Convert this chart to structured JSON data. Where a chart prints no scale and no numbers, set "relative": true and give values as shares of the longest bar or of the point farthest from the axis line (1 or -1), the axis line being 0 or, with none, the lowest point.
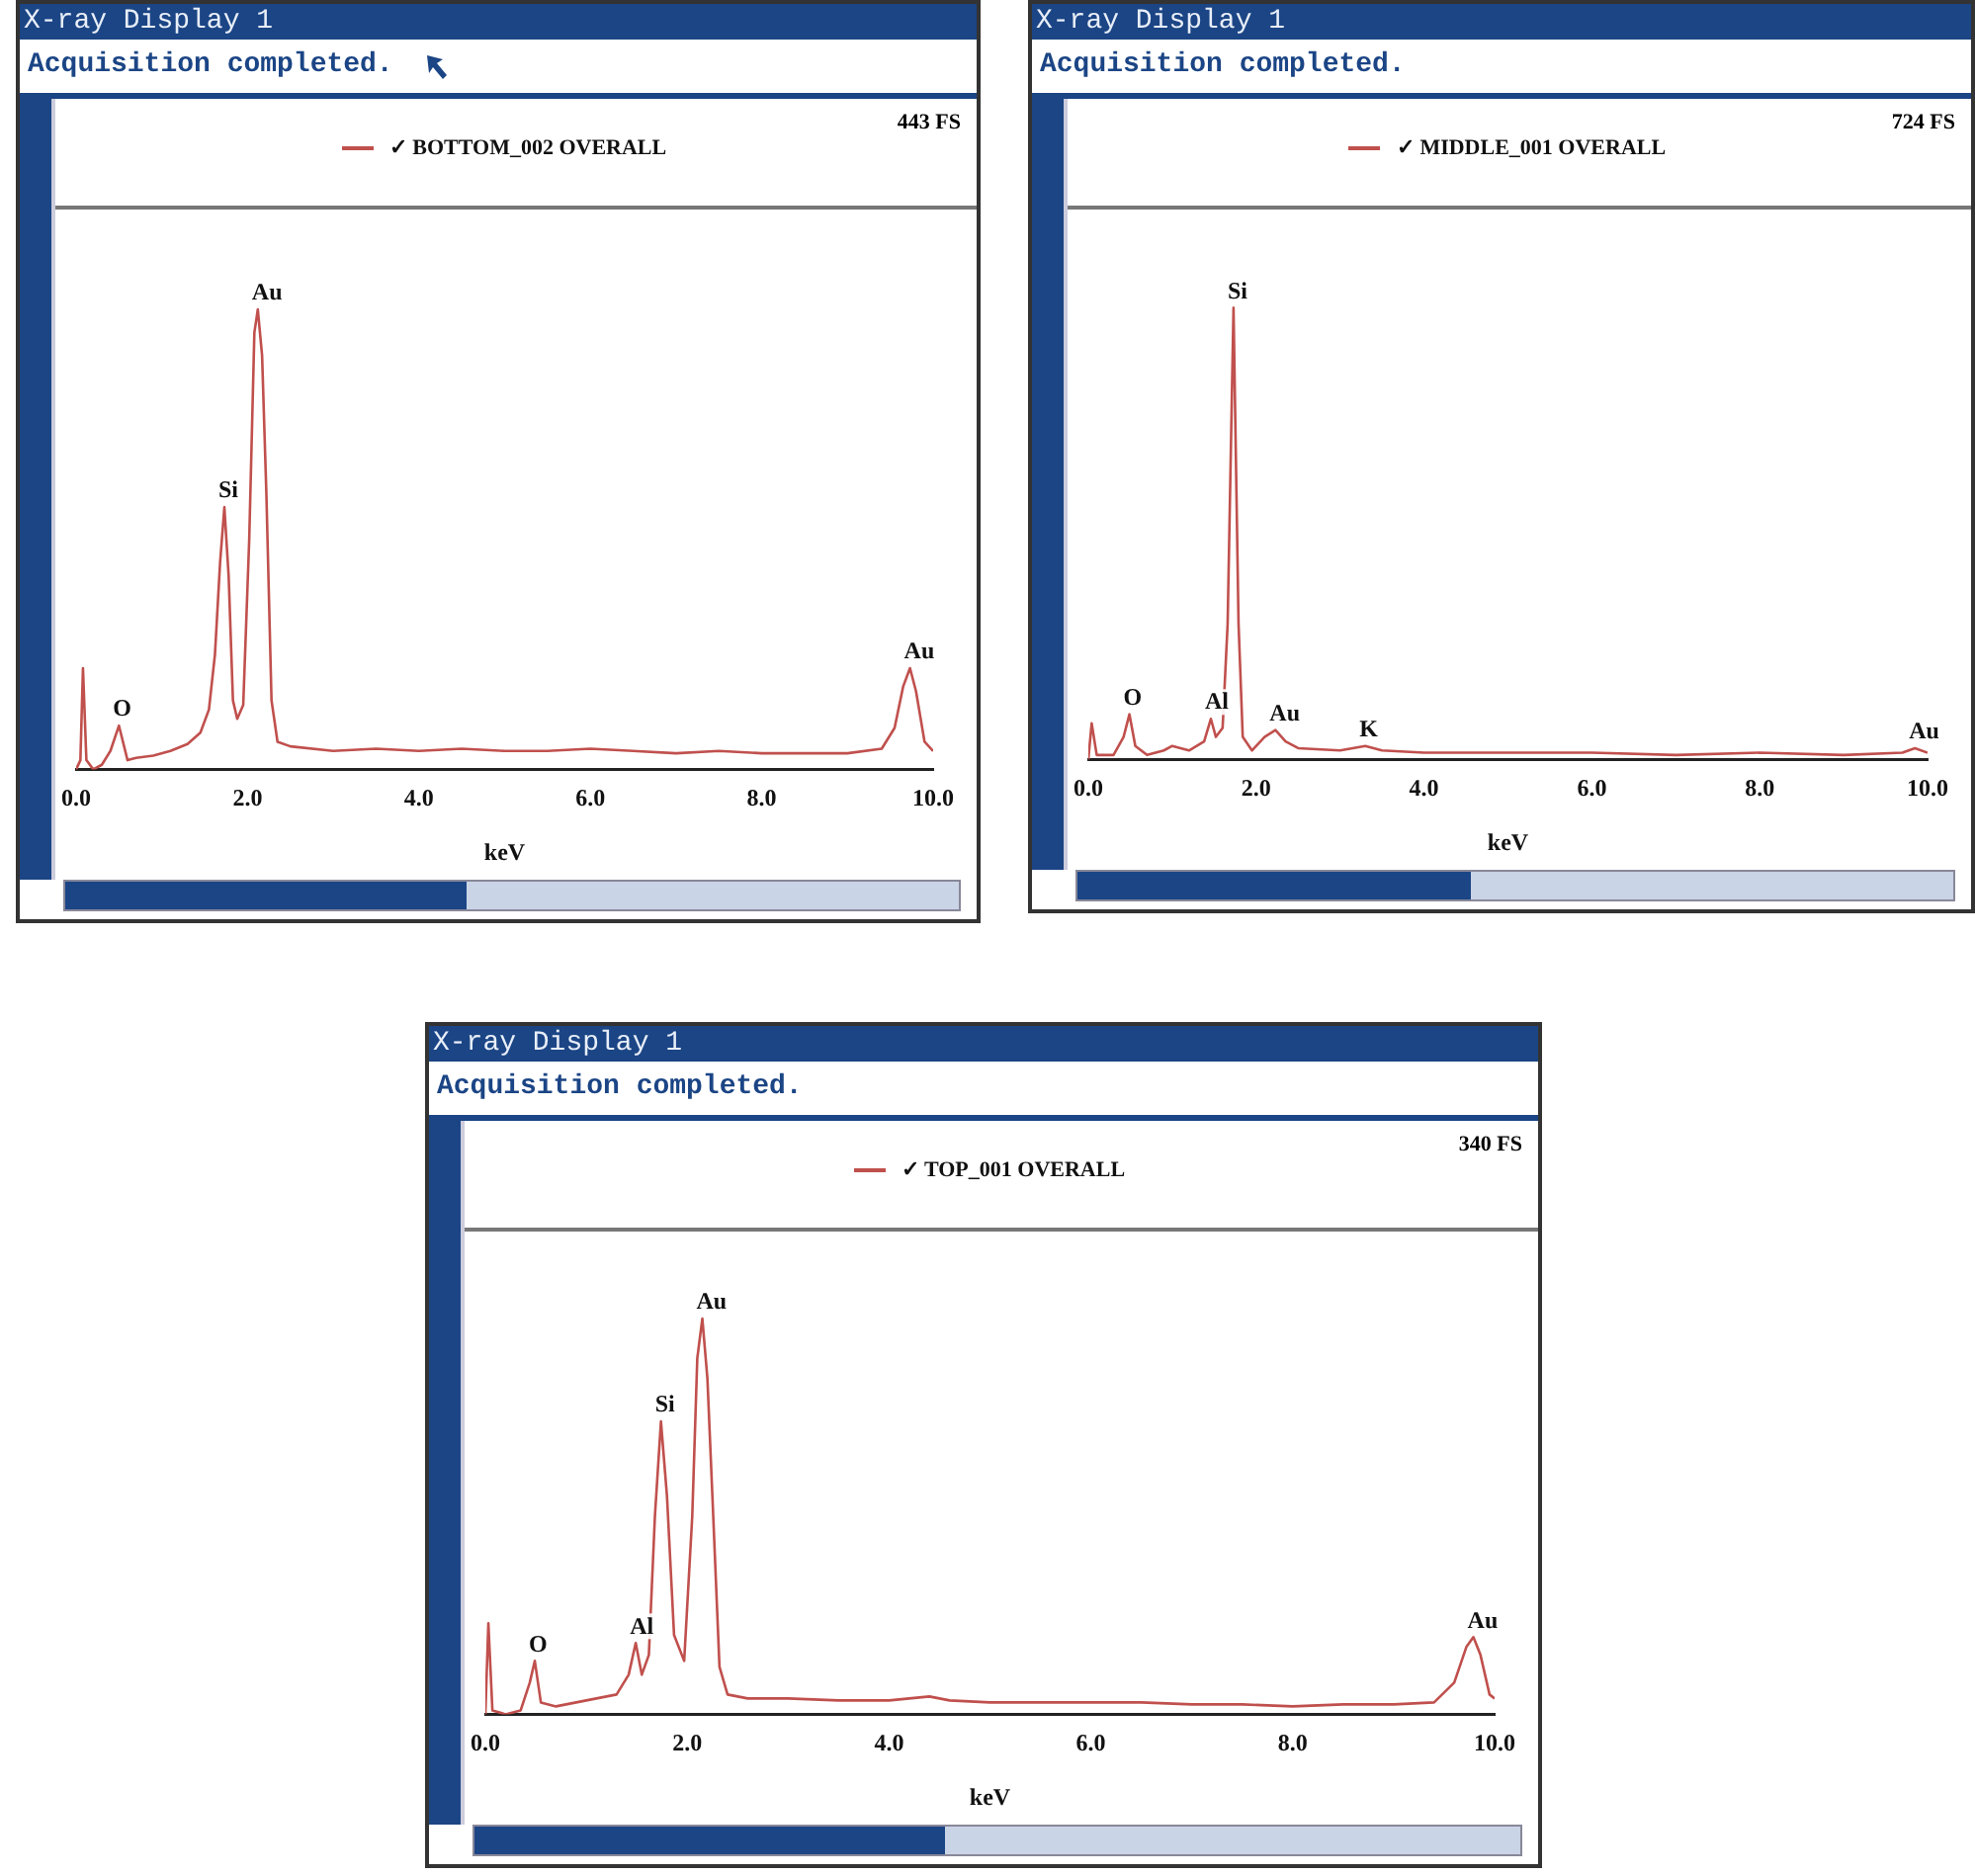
{
  "chart_data": [
    {
      "type": "line",
      "title": "X-ray Display 1",
      "subtitle": "Acquisition completed.",
      "xlabel": "keV",
      "relative": true,
      "legend": "top",
      "xlim": [
        0,
        10.0
      ],
      "xticks": [
        {
          "value": 0,
          "label": "0.0"
        },
        {
          "value": 2,
          "label": "2.0"
        },
        {
          "value": 4,
          "label": "4.0"
        },
        {
          "value": 6,
          "label": "6.0"
        },
        {
          "value": 8,
          "label": "8.0"
        },
        {
          "value": 10,
          "label": "10.0"
        }
      ],
      "x": [
        0,
        0.05,
        0.08,
        0.12,
        0.2,
        0.3,
        0.4,
        0.5,
        0.6,
        0.7,
        0.9,
        1.1,
        1.3,
        1.45,
        1.55,
        1.62,
        1.68,
        1.73,
        1.78,
        1.83,
        1.88,
        1.95,
        2.02,
        2.08,
        2.12,
        2.17,
        2.22,
        2.28,
        2.35,
        2.5,
        3.0,
        3.5,
        4.0,
        4.5,
        5.0,
        5.5,
        6.0,
        6.5,
        7.0,
        7.5,
        8.0,
        8.5,
        9.0,
        9.4,
        9.55,
        9.65,
        9.73,
        9.8,
        9.9,
        10.0
      ],
      "series": [
        {
          "name": "✓ BOTTOM_002 OVERALL",
          "color": "#c0504d",
          "values": [
            0,
            0.02,
            0.22,
            0.02,
            0,
            0.01,
            0.04,
            0.095,
            0.02,
            0.025,
            0.03,
            0.04,
            0.055,
            0.08,
            0.13,
            0.25,
            0.45,
            0.57,
            0.42,
            0.15,
            0.11,
            0.14,
            0.5,
            0.95,
            1,
            0.9,
            0.6,
            0.15,
            0.06,
            0.05,
            0.04,
            0.045,
            0.04,
            0.045,
            0.04,
            0.04,
            0.045,
            0.04,
            0.035,
            0.04,
            0.035,
            0.035,
            0.035,
            0.045,
            0.09,
            0.18,
            0.22,
            0.17,
            0.06,
            0.04
          ]
        }
      ],
      "annotations": [
        "443 FS",
        {
          "text": "O",
          "x": 0.5,
          "y": 0.095
        },
        {
          "text": "Si",
          "x": 1.73,
          "y": 0.57
        },
        {
          "text": "Au",
          "x": 2.12,
          "y": 1
        },
        {
          "text": "Au",
          "x": 9.73,
          "y": 0.22
        }
      ]
    },
    {
      "type": "line",
      "title": "X-ray Display 1",
      "subtitle": "Acquisition completed.",
      "xlabel": "keV",
      "relative": true,
      "legend": "top",
      "xlim": [
        0,
        10.0
      ],
      "xticks": [
        {
          "value": 0,
          "label": "0.0"
        },
        {
          "value": 2,
          "label": "2.0"
        },
        {
          "value": 4,
          "label": "4.0"
        },
        {
          "value": 6,
          "label": "6.0"
        },
        {
          "value": 8,
          "label": "8.0"
        },
        {
          "value": 10,
          "label": "10.0"
        }
      ],
      "x": [
        0,
        0.04,
        0.1,
        0.3,
        0.42,
        0.49,
        0.56,
        0.7,
        0.9,
        1.0,
        1.2,
        1.38,
        1.46,
        1.52,
        1.6,
        1.66,
        1.73,
        1.79,
        1.84,
        1.95,
        2.1,
        2.23,
        2.35,
        2.5,
        3.0,
        3.3,
        3.5,
        4.0,
        5.0,
        6.0,
        7.0,
        8.0,
        9.0,
        9.7,
        9.85,
        10.0
      ],
      "series": [
        {
          "name": "✓ MIDDLE_001 OVERALL",
          "color": "#c0504d",
          "values": [
            0,
            0.08,
            0.01,
            0.01,
            0.05,
            0.1,
            0.03,
            0.01,
            0.02,
            0.03,
            0.02,
            0.04,
            0.09,
            0.05,
            0.07,
            0.3,
            1,
            0.3,
            0.05,
            0.02,
            0.05,
            0.065,
            0.04,
            0.025,
            0.02,
            0.03,
            0.02,
            0.015,
            0.015,
            0.015,
            0.01,
            0.015,
            0.01,
            0.015,
            0.025,
            0.015
          ]
        }
      ],
      "annotations": [
        "724 FS",
        {
          "text": "O",
          "x": 0.49,
          "y": 0.1
        },
        {
          "text": "Al",
          "x": 1.46,
          "y": 0.09
        },
        {
          "text": "Si",
          "x": 1.73,
          "y": 1
        },
        {
          "text": "Au",
          "x": 2.23,
          "y": 0.065
        },
        {
          "text": "K",
          "x": 3.3,
          "y": 0.03
        },
        {
          "text": "Au",
          "x": 9.85,
          "y": 0.025
        }
      ]
    },
    {
      "type": "line",
      "title": "X-ray Display 1",
      "subtitle": "Acquisition completed.",
      "xlabel": "keV",
      "relative": true,
      "legend": "top",
      "xlim": [
        0,
        10.0
      ],
      "xticks": [
        {
          "value": 0,
          "label": "0.0"
        },
        {
          "value": 2,
          "label": "2.0"
        },
        {
          "value": 4,
          "label": "4.0"
        },
        {
          "value": 6,
          "label": "6.0"
        },
        {
          "value": 8,
          "label": "8.0"
        },
        {
          "value": 10,
          "label": "10.0"
        }
      ],
      "x": [
        0,
        0.03,
        0.07,
        0.2,
        0.35,
        0.44,
        0.49,
        0.55,
        0.7,
        0.9,
        1.1,
        1.3,
        1.42,
        1.49,
        1.55,
        1.62,
        1.68,
        1.74,
        1.8,
        1.87,
        1.97,
        2.05,
        2.1,
        2.15,
        2.2,
        2.25,
        2.32,
        2.4,
        2.6,
        3.0,
        3.5,
        4.0,
        4.4,
        4.6,
        5.0,
        5.5,
        6.0,
        6.5,
        7.0,
        7.5,
        8.0,
        8.5,
        9.0,
        9.4,
        9.6,
        9.72,
        9.79,
        9.86,
        9.95,
        10.0
      ],
      "series": [
        {
          "name": "✓ TOP_001 OVERALL",
          "color": "#c0504d",
          "values": [
            0,
            0.23,
            0.01,
            0,
            0.01,
            0.08,
            0.135,
            0.03,
            0.02,
            0.03,
            0.04,
            0.05,
            0.1,
            0.18,
            0.1,
            0.15,
            0.5,
            0.74,
            0.55,
            0.2,
            0.135,
            0.5,
            0.9,
            1,
            0.85,
            0.55,
            0.12,
            0.05,
            0.04,
            0.04,
            0.035,
            0.035,
            0.045,
            0.035,
            0.03,
            0.03,
            0.03,
            0.03,
            0.025,
            0.025,
            0.02,
            0.025,
            0.025,
            0.03,
            0.08,
            0.17,
            0.195,
            0.15,
            0.05,
            0.04
          ]
        }
      ],
      "annotations": [
        "340 FS",
        {
          "text": "O",
          "x": 0.49,
          "y": 0.135
        },
        {
          "text": "Al",
          "x": 1.49,
          "y": 0.18
        },
        {
          "text": "Si",
          "x": 1.74,
          "y": 0.74
        },
        {
          "text": "Au",
          "x": 2.15,
          "y": 1
        },
        {
          "text": "Au",
          "x": 9.79,
          "y": 0.195
        }
      ]
    }
  ]
}
